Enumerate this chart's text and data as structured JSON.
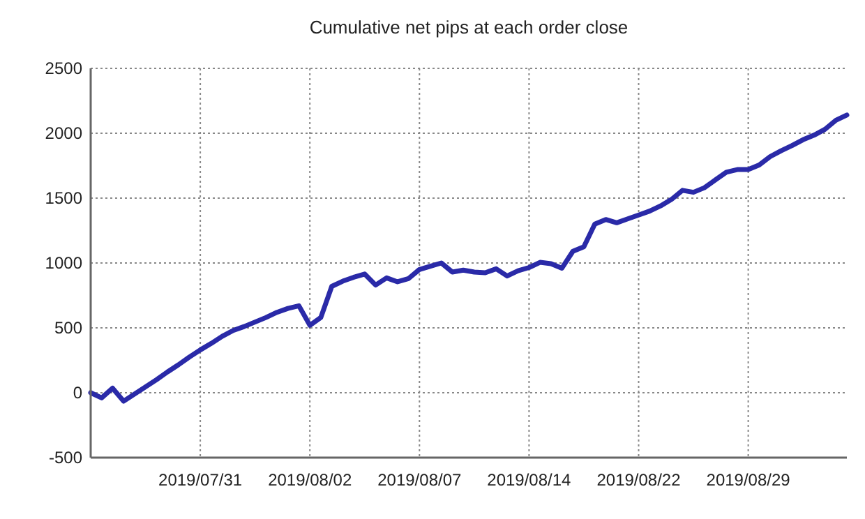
{
  "chart_data": {
    "type": "line",
    "title": "Cumulative net pips at each order close",
    "categories": [
      null,
      null,
      null,
      null,
      null,
      null,
      null,
      null,
      null,
      null,
      "2019/07/31",
      null,
      null,
      null,
      null,
      null,
      null,
      null,
      null,
      null,
      "2019/08/02",
      null,
      null,
      null,
      null,
      null,
      null,
      null,
      null,
      null,
      "2019/08/07",
      null,
      null,
      null,
      null,
      null,
      null,
      null,
      null,
      null,
      "2019/08/14",
      null,
      null,
      null,
      null,
      null,
      null,
      null,
      null,
      null,
      "2019/08/22",
      null,
      null,
      null,
      null,
      null,
      null,
      null,
      null,
      null,
      "2019/08/29",
      null,
      null,
      null,
      null,
      null,
      null,
      null,
      null,
      null
    ],
    "series": [
      {
        "color": "#2a2aa8",
        "values": [
          0,
          -40,
          35,
          -65,
          -10,
          45,
          100,
          160,
          215,
          275,
          330,
          380,
          435,
          480,
          510,
          545,
          580,
          620,
          650,
          670,
          520,
          580,
          820,
          860,
          890,
          915,
          830,
          885,
          855,
          880,
          950,
          975,
          1000,
          930,
          945,
          930,
          925,
          955,
          900,
          940,
          965,
          1005,
          995,
          960,
          1090,
          1125,
          1300,
          1335,
          1310,
          1340,
          1370,
          1400,
          1440,
          1490,
          1560,
          1545,
          1580,
          1640,
          1700,
          1720,
          1720,
          1755,
          1820,
          1865,
          1905,
          1950,
          1985,
          2030,
          2100,
          2140
        ]
      }
    ],
    "ylim": [
      -500,
      2500
    ],
    "yticks": [
      -500,
      0,
      500,
      1000,
      1500,
      2000,
      2500
    ],
    "grid": true
  }
}
